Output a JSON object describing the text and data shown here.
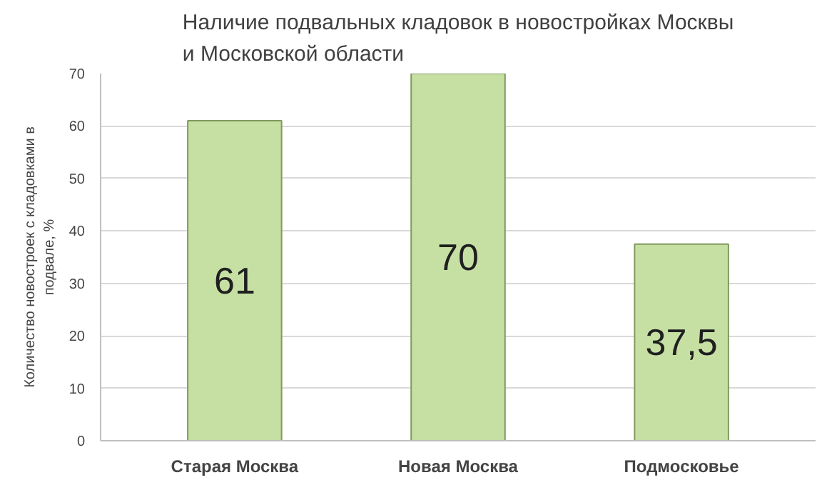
{
  "chart_data": {
    "type": "bar",
    "title": "Наличие подвальных кладовок в новостройках Москвы\nи Московской области",
    "ylabel": "Количество новостроек с кладовками в\nподвале, %",
    "categories": [
      "Старая Москва",
      "Новая Москва",
      "Подмосковье"
    ],
    "values": [
      61,
      70,
      37.5
    ],
    "value_labels": [
      "61",
      "70",
      "37,5"
    ],
    "color": "#c6e0a4",
    "ylim": [
      0,
      70
    ],
    "yticks": [
      0,
      10,
      20,
      30,
      40,
      50,
      60,
      70
    ],
    "grid": "y"
  }
}
